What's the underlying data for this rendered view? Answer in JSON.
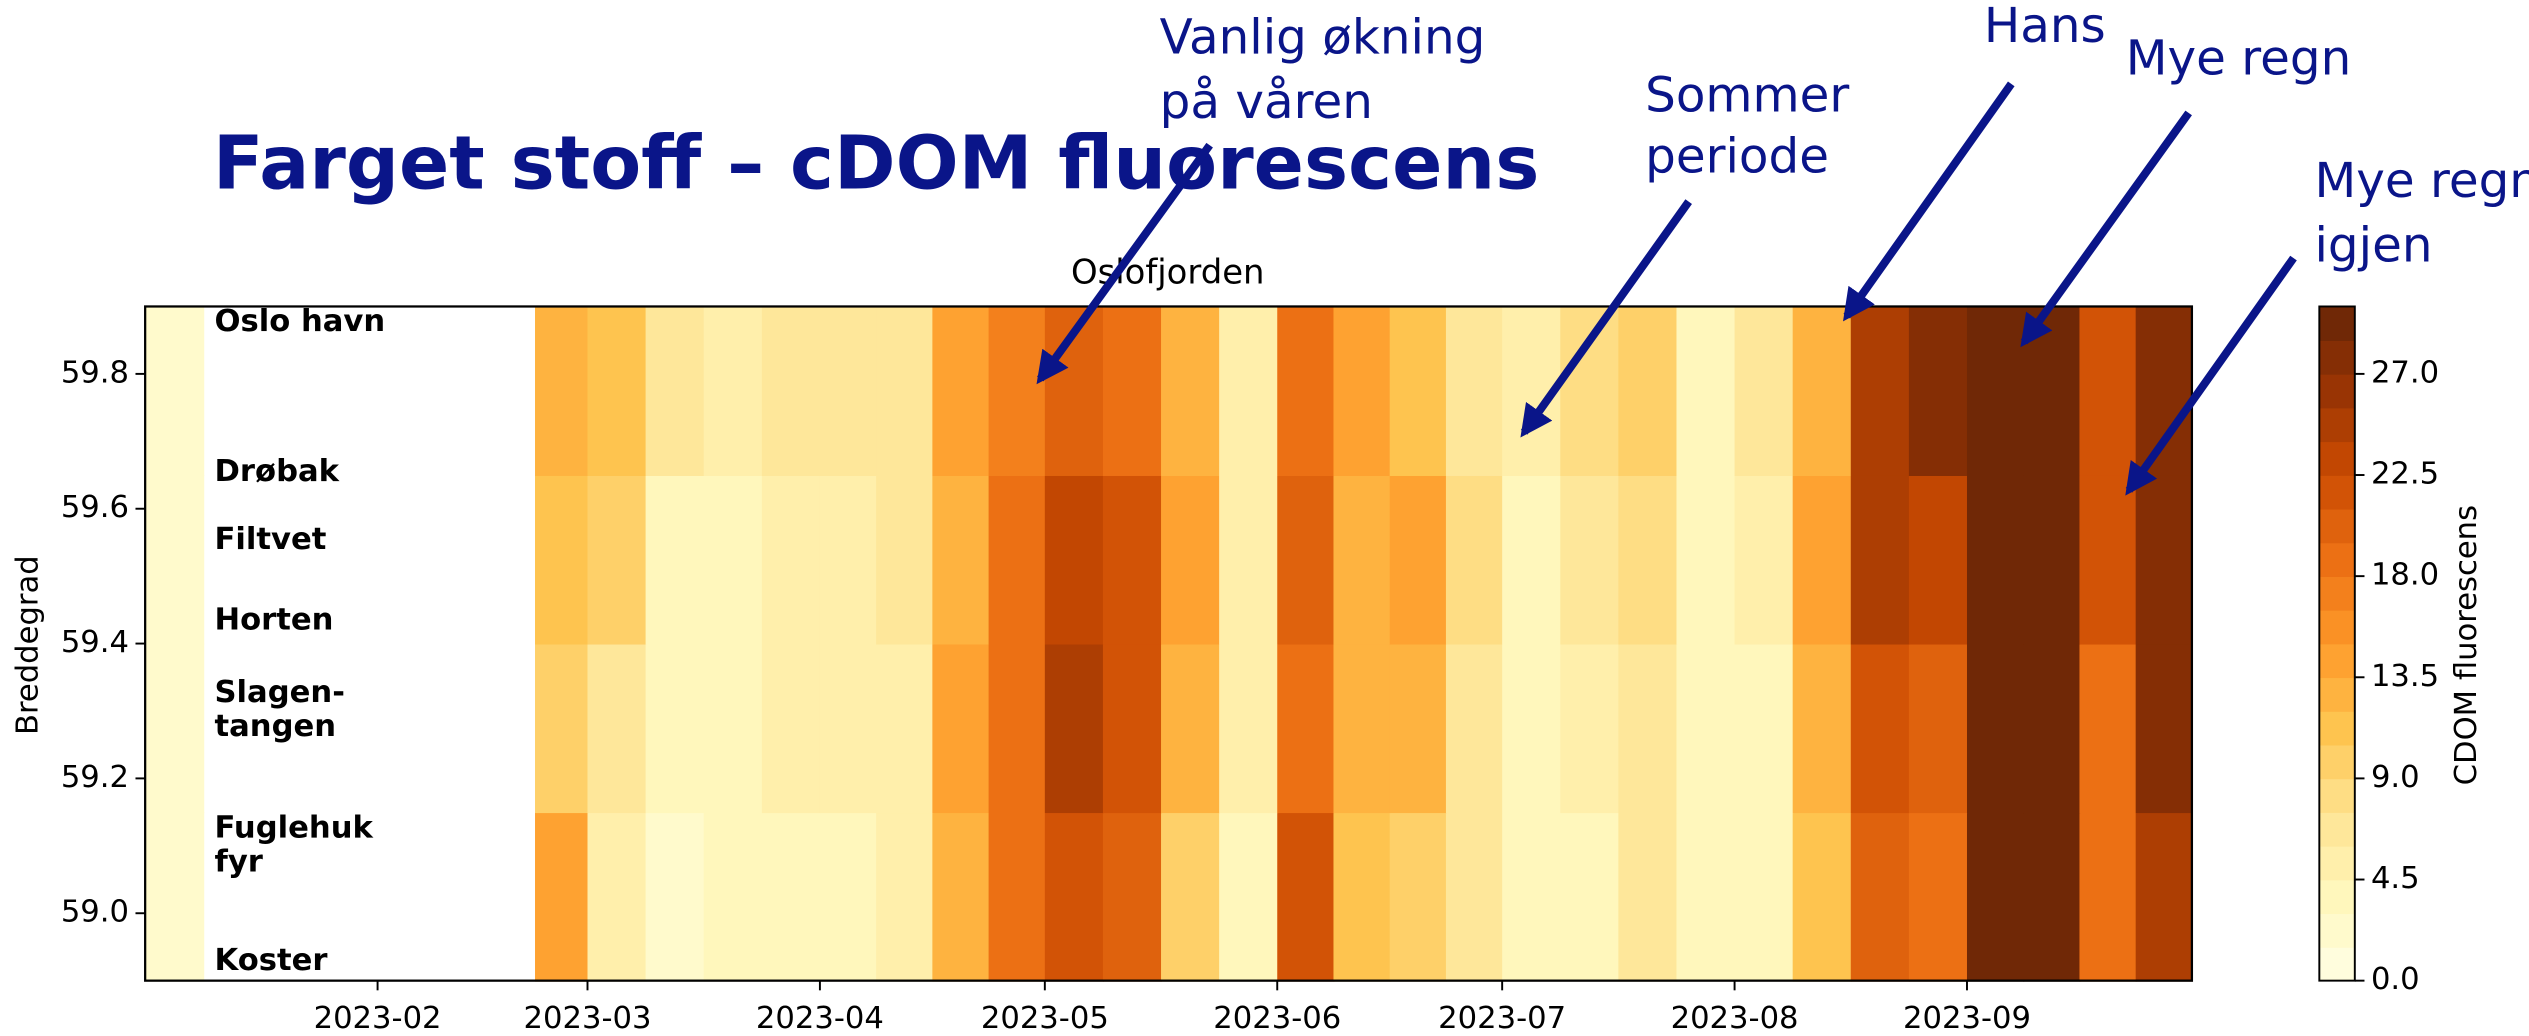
{
  "title": "Farget stoff – cDOM fluorescens",
  "annotations": [
    {
      "lines": [
        "Vanlig økning",
        "på våren"
      ]
    },
    {
      "lines": [
        "Sommer",
        "periode"
      ]
    },
    {
      "lines": [
        "Hans"
      ]
    },
    {
      "lines": [
        "Mye regn"
      ]
    },
    {
      "lines": [
        "Mye regn",
        "igjen"
      ]
    }
  ],
  "chart_data": {
    "type": "heatmap",
    "title": "Oslofjorden",
    "ylabel": "Breddegrad",
    "stations": [
      {
        "lines": [
          "Oslo havn"
        ]
      },
      {
        "lines": [
          "Drøbak"
        ]
      },
      {
        "lines": [
          "Filtvet"
        ]
      },
      {
        "lines": [
          "Horten"
        ]
      },
      {
        "lines": [
          "Slagen-",
          "tangen"
        ]
      },
      {
        "lines": [
          "Fuglehuk",
          "fyr"
        ]
      },
      {
        "lines": [
          "Koster"
        ]
      }
    ],
    "xlim": [
      "2023-01",
      "2023-10"
    ],
    "xticks": [
      "2023-02",
      "2023-03",
      "2023-04",
      "2023-05",
      "2023-06",
      "2023-07",
      "2023-08",
      "2023-09"
    ],
    "ylim": [
      58.9,
      59.9
    ],
    "yticks": [
      {
        "value": 59,
        "label": "59.0"
      },
      59.2,
      59.4,
      59.6,
      59.8
    ],
    "months": [
      "2023-01",
      "2023-02",
      "2023-03",
      "2023-04",
      "2023-05",
      "2023-06",
      "2023-07",
      "2023-08",
      "2023-09"
    ],
    "ybins": [
      58.9,
      59.15,
      59.4,
      59.65,
      59.9
    ],
    "z": [
      [
        [
          2,
          null,
          null,
          null
        ],
        [
          null,
          null,
          null,
          14
        ],
        [
          5,
          2,
          3,
          4
        ],
        [
          4,
          5,
          13,
          18
        ],
        [
          22,
          20,
          10,
          4
        ],
        [
          21,
          11,
          10,
          6
        ],
        [
          3,
          4,
          6,
          3
        ],
        [
          4,
          11,
          20,
          18
        ],
        [
          29,
          29,
          18,
          25
        ]
      ],
      [
        [
          2,
          null,
          null,
          null
        ],
        [
          null,
          null,
          null,
          9
        ],
        [
          6,
          3,
          3,
          5
        ],
        [
          5,
          5,
          14,
          19
        ],
        [
          25,
          22,
          12,
          5
        ],
        [
          19,
          12,
          12,
          7
        ],
        [
          3,
          5,
          7,
          3
        ],
        [
          4,
          12,
          22,
          20
        ],
        [
          29,
          29,
          19,
          27
        ]
      ],
      [
        [
          2,
          null,
          null,
          null
        ],
        [
          null,
          null,
          null,
          11
        ],
        [
          9,
          4,
          4,
          5
        ],
        [
          5,
          6,
          13,
          19
        ],
        [
          23,
          21,
          14,
          5
        ],
        [
          20,
          13,
          14,
          8
        ],
        [
          4,
          6,
          8,
          4
        ],
        [
          5,
          14,
          25,
          23
        ],
        [
          29,
          29,
          21,
          28
        ]
      ],
      [
        [
          2,
          null,
          null,
          null
        ],
        [
          null,
          null,
          null,
          12
        ],
        [
          11,
          6,
          5,
          6
        ],
        [
          6,
          7,
          14,
          17
        ],
        [
          20,
          19,
          13,
          5
        ],
        [
          19,
          14,
          11,
          7
        ],
        [
          5,
          8,
          9,
          4
        ],
        [
          6,
          13,
          24,
          27
        ],
        [
          29,
          29,
          22,
          28
        ]
      ]
    ],
    "colormap": [
      "#ffffe5",
      "#fff7bc",
      "#fee391",
      "#fec44f",
      "#fe9929",
      "#ec7014",
      "#cc4c02",
      "#993404",
      "#662506"
    ],
    "colorbar": {
      "label": "CDOM fluorescens",
      "clim": [
        0,
        30
      ],
      "levels": 20,
      "ticks": [
        {
          "value": 0,
          "label": "0.0"
        },
        4.5,
        {
          "value": 9,
          "label": "9.0"
        },
        13.5,
        {
          "value": 18,
          "label": "18.0"
        },
        22.5,
        {
          "value": 27,
          "label": "27.0"
        }
      ]
    }
  }
}
